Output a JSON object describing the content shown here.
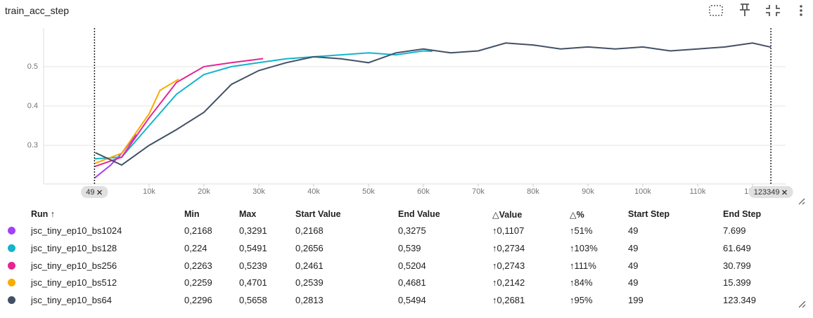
{
  "header": {
    "title": "train_acc_step"
  },
  "chart_data": {
    "type": "line",
    "xlim": [
      -9231,
      126026
    ],
    "ylim": [
      0.202,
      0.598
    ],
    "xticks": [
      {
        "value": 10000,
        "label": "10k"
      },
      {
        "value": 20000,
        "label": "20k"
      },
      {
        "value": 30000,
        "label": "30k"
      },
      {
        "value": 40000,
        "label": "40k"
      },
      {
        "value": 50000,
        "label": "50k"
      },
      {
        "value": 60000,
        "label": "60k"
      },
      {
        "value": 70000,
        "label": "70k"
      },
      {
        "value": 80000,
        "label": "80k"
      },
      {
        "value": 90000,
        "label": "90k"
      },
      {
        "value": 100000,
        "label": "100k"
      },
      {
        "value": 110000,
        "label": "110k"
      },
      {
        "value": 120000,
        "label": "120k"
      }
    ],
    "yticks": [
      0.3,
      0.4,
      0.5
    ],
    "grid": true,
    "x_markers": [
      {
        "value": 49,
        "label": "49"
      },
      {
        "value": 123349,
        "label": "123349"
      }
    ],
    "series": [
      {
        "name": "jsc_tiny_ep10_bs1024",
        "color": "#a142f4",
        "x": [
          49,
          3000,
          5000,
          7699
        ],
        "values": [
          0.2168,
          0.25,
          0.28,
          0.3275
        ]
      },
      {
        "name": "jsc_tiny_ep10_bs128",
        "color": "#12b5cb",
        "x": [
          49,
          5000,
          10000,
          15000,
          20000,
          25000,
          30000,
          35000,
          40000,
          45000,
          50000,
          55000,
          60000,
          61649
        ],
        "values": [
          0.2656,
          0.27,
          0.35,
          0.43,
          0.48,
          0.5,
          0.51,
          0.52,
          0.525,
          0.53,
          0.535,
          0.53,
          0.54,
          0.539
        ]
      },
      {
        "name": "jsc_tiny_ep10_bs256",
        "color": "#e52592",
        "x": [
          49,
          5000,
          10000,
          15000,
          20000,
          25000,
          30799
        ],
        "values": [
          0.2461,
          0.27,
          0.37,
          0.46,
          0.5,
          0.51,
          0.5204
        ]
      },
      {
        "name": "jsc_tiny_ep10_bs512",
        "color": "#f9ab00",
        "x": [
          49,
          5000,
          10000,
          12000,
          15399
        ],
        "values": [
          0.2539,
          0.28,
          0.38,
          0.44,
          0.4681
        ]
      },
      {
        "name": "jsc_tiny_ep10_bs64",
        "color": "#425066",
        "x": [
          199,
          5000,
          10000,
          15000,
          20000,
          25000,
          30000,
          35000,
          40000,
          45000,
          50000,
          55000,
          60000,
          65000,
          70000,
          75000,
          80000,
          85000,
          90000,
          95000,
          100000,
          105000,
          110000,
          115000,
          120000,
          123349
        ],
        "values": [
          0.2813,
          0.25,
          0.3,
          0.34,
          0.384,
          0.455,
          0.49,
          0.51,
          0.525,
          0.52,
          0.51,
          0.535,
          0.545,
          0.535,
          0.54,
          0.56,
          0.555,
          0.545,
          0.55,
          0.545,
          0.55,
          0.54,
          0.545,
          0.55,
          0.56,
          0.5494
        ]
      }
    ]
  },
  "table": {
    "columns": [
      "Run ↑",
      "Min",
      "Max",
      "Start Value",
      "End Value",
      "△Value",
      "△%",
      "Start Step",
      "End Step"
    ],
    "rows": [
      [
        "jsc_tiny_ep10_bs1024",
        "0,2168",
        "0,3291",
        "0,2168",
        "0,3275",
        "↑0,1107",
        "↑51%",
        "49",
        "7.699"
      ],
      [
        "jsc_tiny_ep10_bs128",
        "0,224",
        "0,5491",
        "0,2656",
        "0,539",
        "↑0,2734",
        "↑103%",
        "49",
        "61.649"
      ],
      [
        "jsc_tiny_ep10_bs256",
        "0,2263",
        "0,5239",
        "0,2461",
        "0,5204",
        "↑0,2743",
        "↑111%",
        "49",
        "30.799"
      ],
      [
        "jsc_tiny_ep10_bs512",
        "0,2259",
        "0,4701",
        "0,2539",
        "0,4681",
        "↑0,2142",
        "↑84%",
        "49",
        "15.399"
      ],
      [
        "jsc_tiny_ep10_bs64",
        "0,2296",
        "0,5658",
        "0,2813",
        "0,5494",
        "↑0,2681",
        "↑95%",
        "199",
        "123.349"
      ]
    ]
  }
}
